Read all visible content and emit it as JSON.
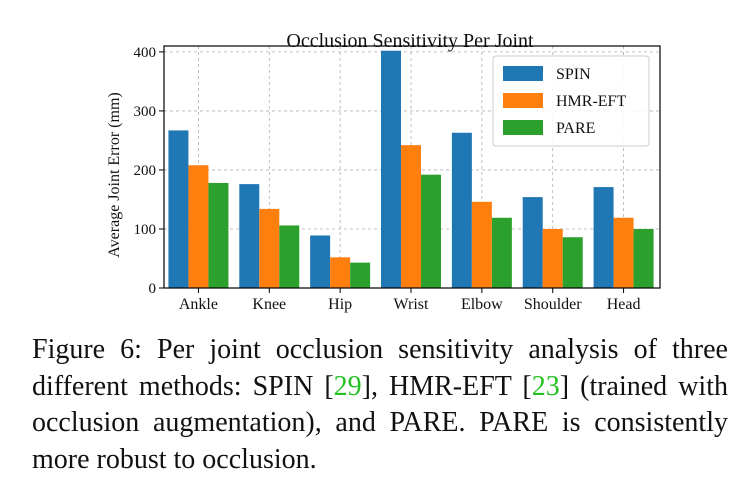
{
  "chart_data": {
    "type": "bar",
    "title": "Occlusion Sensitivity Per Joint",
    "xlabel": "",
    "ylabel": "Average Joint Error (mm)",
    "categories": [
      "Ankle",
      "Knee",
      "Hip",
      "Wrist",
      "Elbow",
      "Shoulder",
      "Head"
    ],
    "series": [
      {
        "name": "SPIN",
        "values": [
          267,
          176,
          89,
          402,
          263,
          154,
          171
        ],
        "color": "#1f77b4"
      },
      {
        "name": "HMR-EFT",
        "values": [
          208,
          134,
          52,
          242,
          146,
          100,
          119
        ],
        "color": "#ff7f0e"
      },
      {
        "name": "PARE",
        "values": [
          178,
          106,
          43,
          192,
          119,
          86,
          100
        ],
        "color": "#2ca02c"
      }
    ],
    "ylim": [
      0,
      410
    ],
    "yticks": [
      0,
      100,
      200,
      300,
      400
    ],
    "grid": true,
    "legend_position": "top-right"
  },
  "caption": {
    "label": "Figure 6:",
    "text_before_ref1": " Per joint occlusion sensitivity analysis of three different methods: SPIN [",
    "ref1": "29",
    "text_between_refs": "], HMR-EFT [",
    "ref2": "23",
    "text_after_ref2": "] (trained with occlusion augmentation), and PARE. PARE is consistently more robust to occlusion.",
    "ref_color": "#22c322"
  }
}
